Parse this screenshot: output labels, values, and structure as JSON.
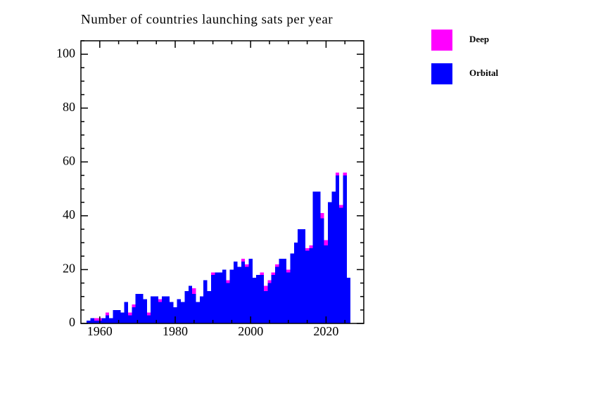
{
  "chart_data": {
    "type": "bar",
    "title": "Number of countries launching sats per year",
    "x": [
      1957,
      1958,
      1959,
      1960,
      1961,
      1962,
      1963,
      1964,
      1965,
      1966,
      1967,
      1968,
      1969,
      1970,
      1971,
      1972,
      1973,
      1974,
      1975,
      1976,
      1977,
      1978,
      1979,
      1980,
      1981,
      1982,
      1983,
      1984,
      1985,
      1986,
      1987,
      1988,
      1989,
      1990,
      1991,
      1992,
      1993,
      1994,
      1995,
      1996,
      1997,
      1998,
      1999,
      2000,
      2001,
      2002,
      2003,
      2004,
      2005,
      2006,
      2007,
      2008,
      2009,
      2010,
      2011,
      2012,
      2013,
      2014,
      2015,
      2016,
      2017,
      2018,
      2019,
      2020,
      2021,
      2022,
      2023,
      2024,
      2025,
      2026
    ],
    "series": [
      {
        "name": "Orbital",
        "color": "#0000ff",
        "values": [
          1,
          2,
          1,
          1,
          2,
          3,
          2,
          5,
          5,
          4,
          8,
          3,
          6,
          11,
          11,
          9,
          3,
          10,
          10,
          8,
          10,
          10,
          8,
          6,
          9,
          8,
          12,
          14,
          11,
          8,
          10,
          16,
          12,
          18,
          19,
          19,
          20,
          15,
          20,
          23,
          21,
          23,
          21,
          24,
          17,
          18,
          18,
          12,
          15,
          18,
          21,
          24,
          24,
          19,
          26,
          30,
          35,
          35,
          27,
          28,
          49,
          49,
          39,
          29,
          45,
          49,
          55,
          43,
          55,
          17
        ]
      },
      {
        "name": "Deep",
        "color": "#ff00ff",
        "values": [
          0,
          0,
          1,
          1,
          0,
          1,
          0,
          0,
          0,
          0,
          0,
          1,
          1,
          0,
          0,
          0,
          1,
          0,
          0,
          1,
          0,
          0,
          0,
          0,
          0,
          0,
          0,
          0,
          2,
          0,
          0,
          0,
          0,
          1,
          0,
          0,
          0,
          1,
          0,
          0,
          0,
          1,
          1,
          0,
          0,
          0,
          1,
          2,
          1,
          1,
          1,
          0,
          0,
          1,
          0,
          0,
          0,
          0,
          1,
          1,
          0,
          0,
          2,
          2,
          0,
          0,
          1,
          1,
          1,
          0
        ]
      }
    ],
    "xlim": [
      1955,
      2030
    ],
    "xticks": [
      1960,
      1980,
      2000,
      2020
    ],
    "xminorticks": [
      1965,
      1970,
      1975,
      1985,
      1990,
      1995,
      2005,
      2010,
      2015,
      2025
    ],
    "ylim": [
      0,
      105
    ],
    "yticks": [
      0,
      20,
      40,
      60,
      80,
      100
    ],
    "yminorticks": [
      5,
      10,
      15,
      25,
      30,
      35,
      45,
      50,
      55,
      65,
      70,
      75,
      85,
      90,
      95,
      105
    ],
    "stacked": true,
    "legend": "outside-right"
  }
}
